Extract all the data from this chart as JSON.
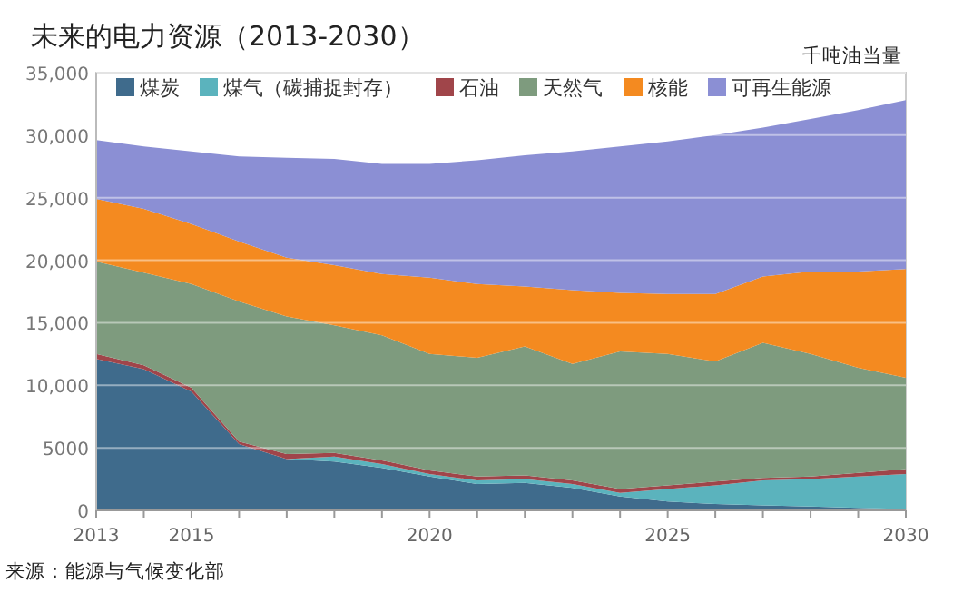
{
  "chart_data": {
    "type": "area",
    "stacked": true,
    "title": "未来的电力资源（2013-2030）",
    "ylabel": "千吨油当量",
    "annotations": [
      "来源：能源与气候变化部"
    ],
    "x": [
      2013,
      2014,
      2015,
      2016,
      2017,
      2018,
      2019,
      2020,
      2021,
      2022,
      2023,
      2024,
      2025,
      2026,
      2027,
      2028,
      2029,
      2030
    ],
    "xlim": [
      2013,
      2030
    ],
    "xticks": [
      2013,
      {
        "value": 2014,
        "label": null
      },
      2015,
      {
        "value": 2016,
        "label": null
      },
      {
        "value": 2017,
        "label": null
      },
      {
        "value": 2018,
        "label": null
      },
      {
        "value": 2019,
        "label": null
      },
      2020,
      {
        "value": 2021,
        "label": null
      },
      {
        "value": 2022,
        "label": null
      },
      {
        "value": 2023,
        "label": null
      },
      {
        "value": 2024,
        "label": null
      },
      2025,
      {
        "value": 2026,
        "label": null
      },
      {
        "value": 2027,
        "label": null
      },
      {
        "value": 2028,
        "label": null
      },
      {
        "value": 2029,
        "label": null
      },
      2030
    ],
    "ylim": [
      0,
      35000
    ],
    "yticks": [
      0,
      5000,
      {
        "value": 10000,
        "label": "10,000"
      },
      {
        "value": 15000,
        "label": "15,000"
      },
      {
        "value": 20000,
        "label": "20,000"
      },
      {
        "value": 25000,
        "label": "25,000"
      },
      {
        "value": 30000,
        "label": "30,000"
      },
      {
        "value": 35000,
        "label": "35,000"
      }
    ],
    "grid": "y",
    "legend": "top",
    "series": [
      {
        "name": "煤炭",
        "color": "#3f6b8c",
        "values": [
          12100,
          11300,
          9500,
          5300,
          4100,
          3900,
          3400,
          2700,
          2100,
          2200,
          1800,
          1100,
          700,
          500,
          400,
          300,
          200,
          100
        ]
      },
      {
        "name": "煤气（碳捕捉封存）",
        "color": "#5bb3bd",
        "values": [
          null,
          null,
          null,
          null,
          0,
          400,
          300,
          200,
          300,
          300,
          300,
          300,
          1000,
          1500,
          2000,
          2200,
          2500,
          2800
        ]
      },
      {
        "name": "石油",
        "color": "#a0454a",
        "values": [
          400,
          300,
          300,
          200,
          400,
          300,
          300,
          300,
          300,
          300,
          300,
          300,
          300,
          300,
          200,
          200,
          300,
          400
        ]
      },
      {
        "name": "天然气",
        "color": "#7e9b7e",
        "values": [
          7400,
          7400,
          8300,
          11200,
          11000,
          10200,
          10000,
          9300,
          9500,
          10300,
          9300,
          11000,
          10500,
          9600,
          10800,
          9800,
          8400,
          7300
        ]
      },
      {
        "name": "核能",
        "color": "#f48a20",
        "values": [
          5000,
          5100,
          4800,
          4800,
          4700,
          4800,
          4900,
          6100,
          5900,
          4800,
          5900,
          4700,
          4800,
          5400,
          5300,
          6600,
          7700,
          8700
        ]
      },
      {
        "name": "可再生能源",
        "color": "#8b8fd4",
        "values": [
          4700,
          5000,
          5800,
          6800,
          8000,
          8500,
          8800,
          9100,
          9900,
          10500,
          11100,
          11700,
          12200,
          12700,
          11900,
          12200,
          12900,
          13500
        ]
      }
    ]
  }
}
